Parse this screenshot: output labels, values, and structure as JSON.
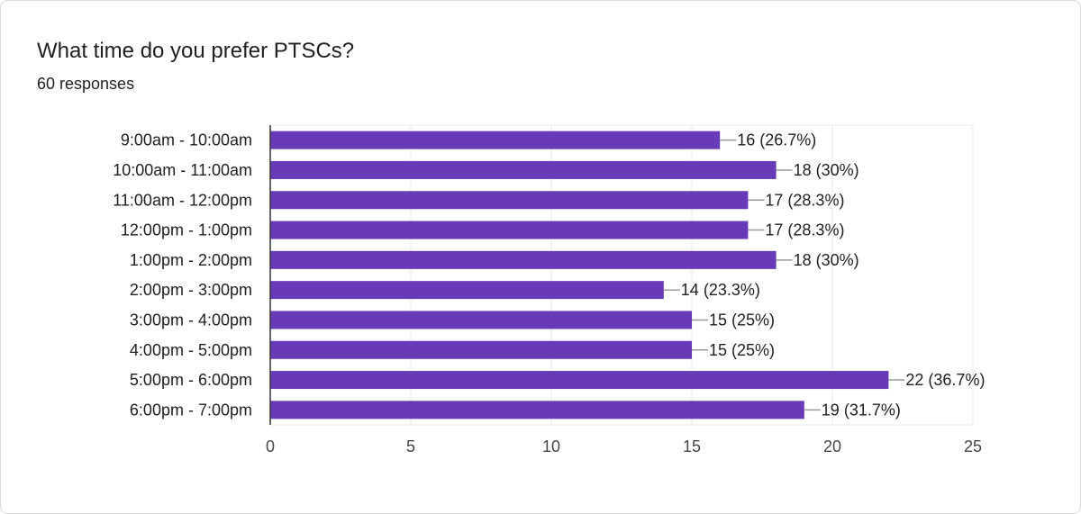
{
  "header": {
    "title": "What time do you prefer PTSCs?",
    "responses": "60 responses"
  },
  "colors": {
    "bar": "#673ab7",
    "grid": "#e8e8e8",
    "axis": "#333333",
    "leader": "#999999"
  },
  "chart_data": {
    "type": "bar",
    "orientation": "horizontal",
    "title": "What time do you prefer PTSCs?",
    "xlabel": "",
    "ylabel": "",
    "xlim": [
      0,
      25
    ],
    "xticks": [
      0,
      5,
      10,
      15,
      20,
      25
    ],
    "grid": true,
    "categories": [
      "9:00am - 10:00am",
      "10:00am - 11:00am",
      "11:00am - 12:00pm",
      "12:00pm - 1:00pm",
      "1:00pm - 2:00pm",
      "2:00pm - 3:00pm",
      "3:00pm - 4:00pm",
      "4:00pm - 5:00pm",
      "5:00pm - 6:00pm",
      "6:00pm - 7:00pm"
    ],
    "values": [
      16,
      18,
      17,
      17,
      18,
      14,
      15,
      15,
      22,
      19
    ],
    "data_labels": [
      "16 (26.7%)",
      "18 (30%)",
      "17 (28.3%)",
      "17 (28.3%)",
      "18 (30%)",
      "14 (23.3%)",
      "15 (25%)",
      "15 (25%)",
      "22 (36.7%)",
      "19 (31.7%)"
    ]
  }
}
